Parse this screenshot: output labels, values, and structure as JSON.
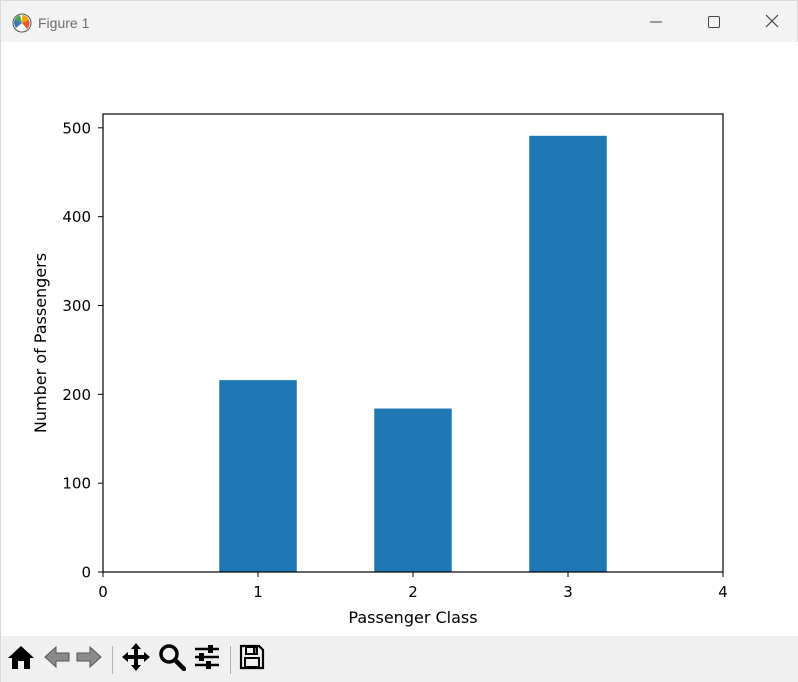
{
  "window": {
    "title": "Figure 1",
    "icons": {
      "app": "matplotlib-icon",
      "minimize": "minimize-icon",
      "maximize": "maximize-icon",
      "close": "close-icon"
    }
  },
  "toolbar": {
    "buttons": [
      {
        "name": "home-icon",
        "enabled": true
      },
      {
        "name": "back-arrow-icon",
        "enabled": false
      },
      {
        "name": "forward-arrow-icon",
        "enabled": false
      },
      {
        "name": "pan-icon",
        "enabled": true
      },
      {
        "name": "zoom-icon",
        "enabled": true
      },
      {
        "name": "configure-subplots-icon",
        "enabled": true
      },
      {
        "name": "save-icon",
        "enabled": true
      }
    ]
  },
  "chart_data": {
    "type": "bar",
    "x": [
      1,
      2,
      3
    ],
    "values": [
      216,
      184,
      491
    ],
    "title": "",
    "xlabel": "Passenger Class",
    "ylabel": "Number of Passengers",
    "xlim": [
      0,
      4
    ],
    "ylim": [
      0,
      515.55
    ],
    "xticks": [
      "0",
      "1",
      "2",
      "3",
      "4"
    ],
    "yticks": [
      "0",
      "100",
      "200",
      "300",
      "400",
      "500"
    ],
    "bar_width": 0.5,
    "bar_color": "#1f77b4",
    "grid": false,
    "legend": false
  }
}
